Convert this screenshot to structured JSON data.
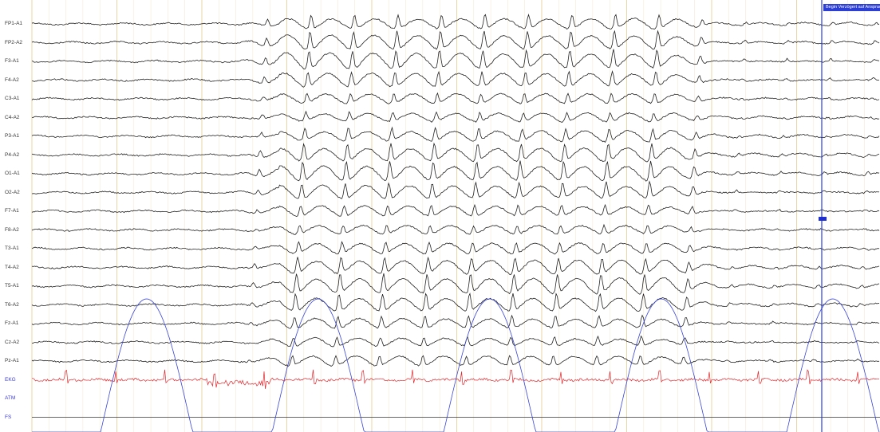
{
  "viewer": {
    "channels": [
      {
        "label": "FP1-A1",
        "type": "eeg"
      },
      {
        "label": "FP2-A2",
        "type": "eeg"
      },
      {
        "label": "F3-A1",
        "type": "eeg"
      },
      {
        "label": "F4-A2",
        "type": "eeg"
      },
      {
        "label": "C3-A1",
        "type": "eeg"
      },
      {
        "label": "C4-A2",
        "type": "eeg"
      },
      {
        "label": "P3-A1",
        "type": "eeg"
      },
      {
        "label": "P4-A2",
        "type": "eeg"
      },
      {
        "label": "O1-A1",
        "type": "eeg"
      },
      {
        "label": "O2-A2",
        "type": "eeg"
      },
      {
        "label": "F7-A1",
        "type": "eeg"
      },
      {
        "label": "F8-A2",
        "type": "eeg"
      },
      {
        "label": "T3-A1",
        "type": "eeg"
      },
      {
        "label": "T4-A2",
        "type": "eeg"
      },
      {
        "label": "T5-A1",
        "type": "eeg"
      },
      {
        "label": "T6-A2",
        "type": "eeg"
      },
      {
        "label": "Fz-A1",
        "type": "eeg"
      },
      {
        "label": "Cz-A2",
        "type": "eeg"
      },
      {
        "label": "Pz-A1",
        "type": "eeg"
      },
      {
        "label": "EKG",
        "type": "ekg"
      },
      {
        "label": "ATM",
        "type": "resp"
      },
      {
        "label": "FS",
        "type": "fs"
      }
    ],
    "marker_label": "Begin Verzögert auf Ansprache",
    "colors": {
      "eeg": "#222222",
      "ekg": "#e0262b",
      "resp": "#3a46d8",
      "grid_major": "#e6c98f",
      "grid_minor": "#f1e6cc",
      "marker": "#2b3fd6"
    }
  }
}
